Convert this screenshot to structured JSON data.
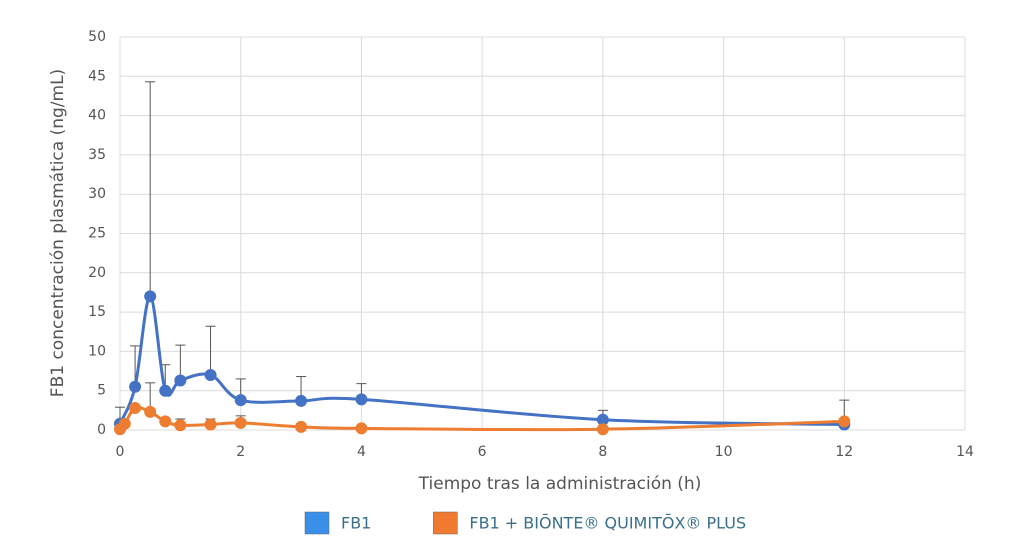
{
  "chart_data": {
    "type": "line",
    "xlabel": "Tiempo tras la administración (h)",
    "ylabel": "FB1 concentración plasmática (ng/mL)",
    "xlim": [
      0,
      14
    ],
    "xticks": [
      0,
      2,
      4,
      6,
      8,
      10,
      12,
      14
    ],
    "ylim": [
      0,
      50
    ],
    "yticks": [
      0,
      5,
      10,
      15,
      20,
      25,
      30,
      35,
      40,
      45,
      50
    ],
    "grid": true,
    "smooth": true,
    "legend": "bottom",
    "series": [
      {
        "name": "FB1",
        "color": "#4472c4",
        "legend_color": "#3a8fe8",
        "x": [
          0,
          0.25,
          0.5,
          0.75,
          1,
          1.5,
          2,
          3,
          4,
          8,
          12
        ],
        "values": [
          0.8,
          5.5,
          17,
          5,
          6.3,
          7,
          3.8,
          3.7,
          3.9,
          1.3,
          0.7
        ],
        "errors": [
          2.1,
          5.2,
          27.3,
          3.3,
          4.5,
          6.2,
          2.7,
          3.1,
          2,
          1.2,
          null
        ]
      },
      {
        "name": "FB1 + BIŌNTE® QUIMITŌX® PLUS",
        "color": "#ed7d31",
        "legend_color": "#f07a30",
        "x": [
          0,
          0.08,
          0.25,
          0.5,
          0.75,
          1,
          1.5,
          2,
          3,
          4,
          8,
          12
        ],
        "values": [
          0.1,
          0.8,
          2.8,
          2.3,
          1.1,
          0.6,
          0.7,
          0.9,
          0.4,
          0.2,
          0.1,
          1.1
        ],
        "errors": [
          null,
          null,
          null,
          3.7,
          null,
          0.8,
          0.7,
          0.9,
          null,
          null,
          null,
          2.7
        ]
      }
    ]
  }
}
